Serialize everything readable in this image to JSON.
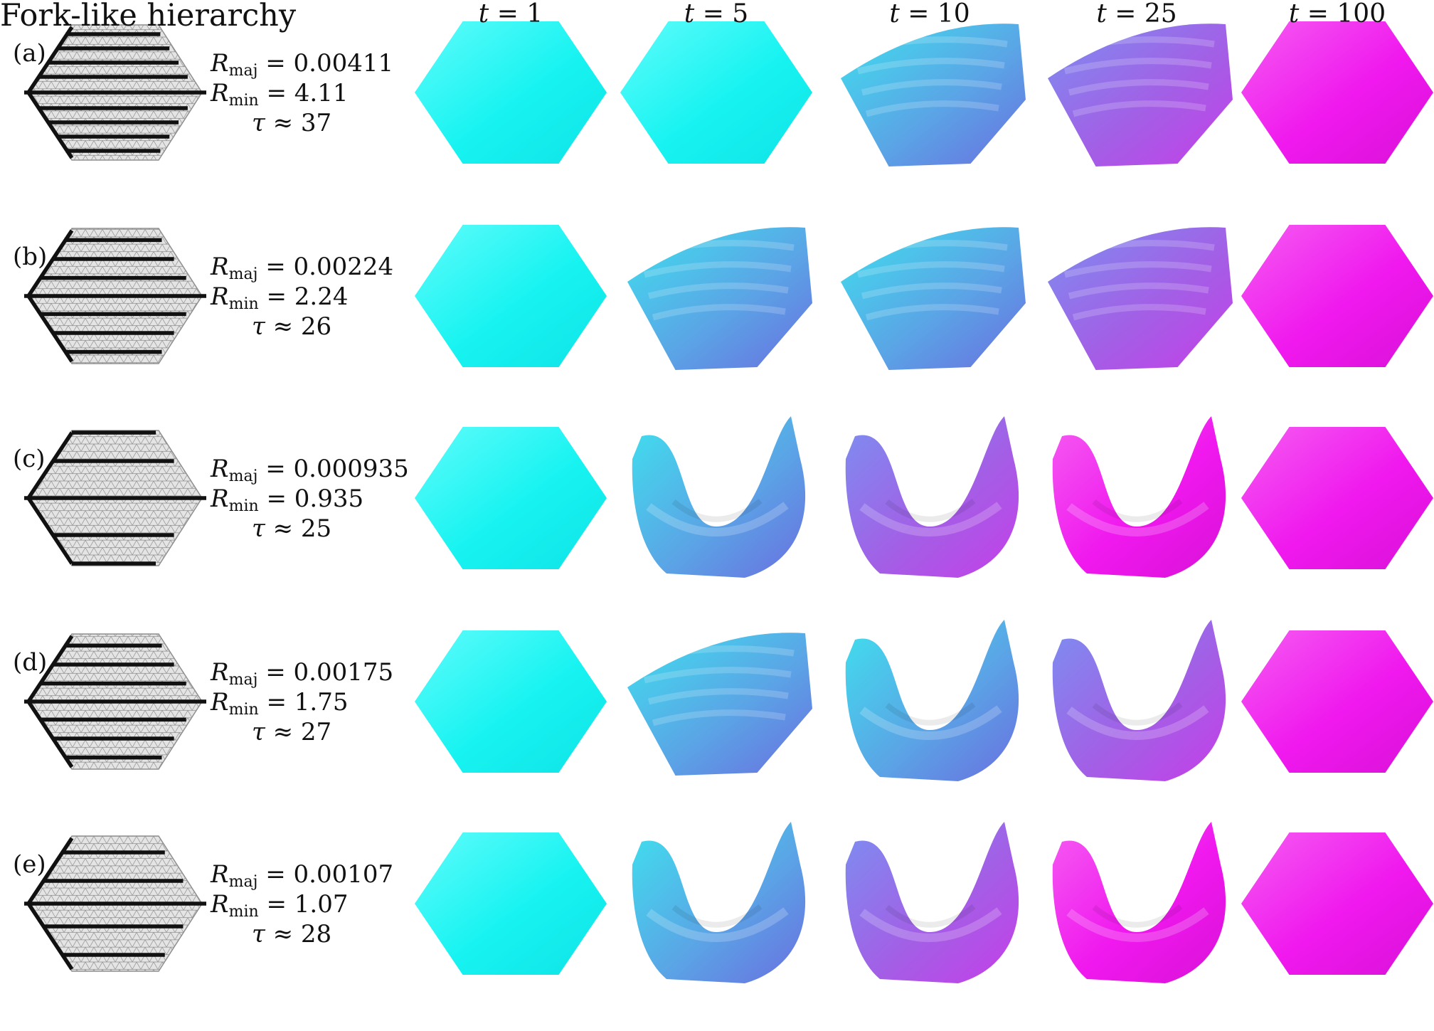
{
  "figure": {
    "title": "Fork-like hierarchy",
    "time_headers": [
      {
        "var": "t",
        "eq": "=",
        "val": "1"
      },
      {
        "var": "t",
        "eq": "=",
        "val": "5"
      },
      {
        "var": "t",
        "eq": "=",
        "val": "10"
      },
      {
        "var": "t",
        "eq": "=",
        "val": "25"
      },
      {
        "var": "t",
        "eq": "=",
        "val": "100"
      }
    ],
    "symbols": {
      "R": "R",
      "maj": "maj",
      "min": "min",
      "tau": "τ",
      "eq": "=",
      "approx": "≈"
    },
    "rows": [
      {
        "label": "(a)",
        "branches": 8,
        "r_maj": "0.00411",
        "r_min": "4.11",
        "tau": "37",
        "shapes": [
          "flat",
          "flat",
          "mild",
          "mild",
          "flat"
        ],
        "colors": [
          "cyan",
          "cyan",
          "blue",
          "violet",
          "magenta"
        ]
      },
      {
        "label": "(b)",
        "branches": 6,
        "r_maj": "0.00224",
        "r_min": "2.24",
        "tau": "26",
        "shapes": [
          "flat",
          "mild",
          "mild",
          "mild",
          "flat"
        ],
        "colors": [
          "cyan",
          "blue",
          "blue",
          "violet",
          "magenta"
        ]
      },
      {
        "label": "(c)",
        "branches": 2,
        "r_maj": "0.000935",
        "r_min": "0.935",
        "tau": "25",
        "shapes": [
          "flat",
          "deep",
          "deep",
          "deep",
          "flat"
        ],
        "colors": [
          "cyan",
          "blue",
          "violet",
          "magenta",
          "magenta"
        ]
      },
      {
        "label": "(d)",
        "branches": 6,
        "r_maj": "0.00175",
        "r_min": "1.75",
        "tau": "27",
        "shapes": [
          "flat",
          "mild",
          "deep",
          "deep",
          "flat"
        ],
        "colors": [
          "cyan",
          "blue",
          "blue",
          "violet",
          "magenta"
        ]
      },
      {
        "label": "(e)",
        "branches": 4,
        "r_maj": "0.00107",
        "r_min": "1.07",
        "tau": "28",
        "shapes": [
          "flat",
          "deep",
          "deep",
          "deep",
          "flat"
        ],
        "colors": [
          "cyan",
          "blue",
          "violet",
          "magenta",
          "magenta"
        ]
      }
    ]
  },
  "palette": {
    "cyan": "#17f3f1",
    "blue": "#5aa6e6",
    "violet": "#a260e6",
    "magenta": "#f018ee",
    "mesh_fill": "#e4e4e4",
    "mesh_line": "#8f8f8f",
    "vein": "#111111"
  }
}
